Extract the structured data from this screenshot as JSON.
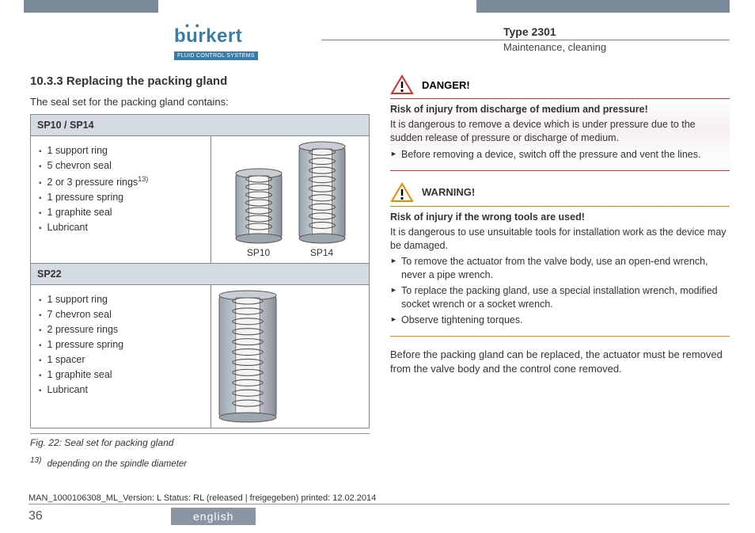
{
  "colors": {
    "header_bar": "#7b8a99",
    "logo_blue": "#3a7ca8",
    "danger_border": "#d62e2e",
    "warning_border": "#e68a00",
    "table_head_bg": "#d4dbe2",
    "lang_tab_bg": "#8a96a3"
  },
  "header": {
    "logo_main": "burkert",
    "logo_sub": "FLUID CONTROL SYSTEMS",
    "type": "Type 2301",
    "subtitle": "Maintenance, cleaning"
  },
  "section": {
    "number_title": "10.3.3  Replacing the packing gland",
    "intro": "The seal set for the packing gland contains:"
  },
  "table": {
    "row1": {
      "head": "SP10 / SP14",
      "items": [
        "1 support ring",
        "5 chevron seal",
        "2 or 3 pressure rings",
        "1 pressure spring",
        "1 graphite seal",
        "Lubricant"
      ],
      "items_sup_index": 2,
      "items_sup": "13)",
      "img_labels": [
        "SP10",
        "SP14"
      ],
      "drawing": {
        "sp10_height": 96,
        "sp14_height": 130,
        "width": 62
      }
    },
    "row2": {
      "head": "SP22",
      "items": [
        "1 support ring",
        "7 chevron seal",
        "2 pressure rings",
        "1 pressure spring",
        "1 spacer",
        "1 graphite seal",
        "Lubricant"
      ],
      "img_label": "",
      "drawing": {
        "height": 168,
        "width": 76
      }
    }
  },
  "figure_caption": "Fig. 22:   Seal set for packing gland",
  "footnote": {
    "num": "13)",
    "text": "depending on the spindle diameter"
  },
  "danger": {
    "title": "DANGER!",
    "risk": "Risk of injury from discharge of medium and pressure!",
    "text": "It is dangerous to remove a device which is under pressure due to the sudden release of pressure or discharge of medium.",
    "bullets": [
      "Before removing a device, switch off the pressure and vent the lines."
    ]
  },
  "warning": {
    "title": "WARNING!",
    "risk": "Risk of injury if the wrong tools are used!",
    "text": "It is dangerous to use unsuitable tools for installation work as the device may be damaged.",
    "bullets": [
      "To remove the actuator from the valve body, use an open-end wrench, never a pipe wrench.",
      "To replace the packing gland, use a special installation wrench, modified socket wrench or a socket wrench.",
      "Observe tightening torques."
    ]
  },
  "closing_para": "Before the packing gland can be replaced, the actuator must be removed from the valve body and the control cone removed.",
  "footer": {
    "manline": "MAN_1000106308_ML_Version: L Status: RL (released | freigegeben)  printed: 12.02.2014",
    "page": "36",
    "lang": "english"
  }
}
